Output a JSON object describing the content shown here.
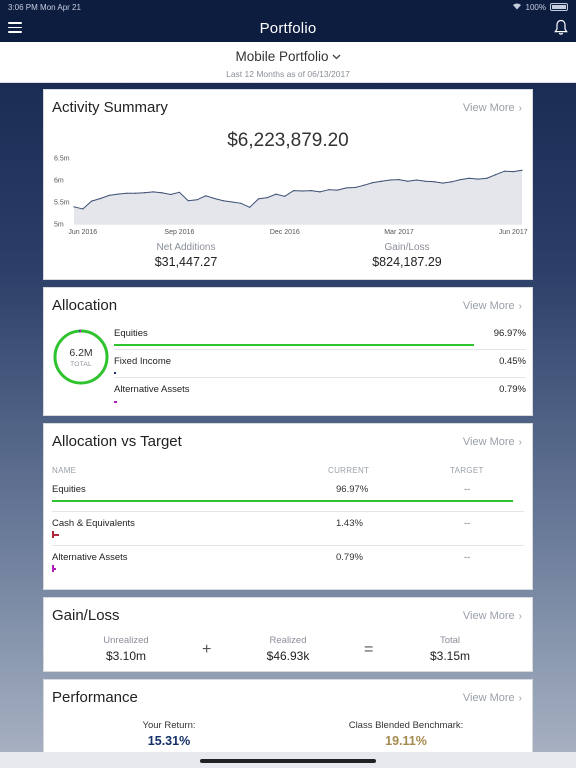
{
  "status_bar": {
    "time": "3:06 PM",
    "date": "Mon Apr 21",
    "battery": "100%"
  },
  "nav": {
    "title": "Portfolio"
  },
  "portfolio": {
    "name": "Mobile Portfolio",
    "subtitle": "Last 12 Months as of 06/13/2017"
  },
  "common": {
    "view_more": "View More"
  },
  "activity": {
    "title": "Activity Summary",
    "total_value": "$6,223,879.20",
    "net_additions_label": "Net Additions",
    "net_additions_value": "$31,447.27",
    "gain_loss_label": "Gain/Loss",
    "gain_loss_value": "$824,187.29"
  },
  "chart_data": {
    "type": "area",
    "title": "",
    "xlabel": "",
    "ylabel": "",
    "ylim": [
      5,
      6.5
    ],
    "y_ticks": [
      {
        "value": 6.5,
        "label": "6.5m"
      },
      {
        "value": 6,
        "label": "6m"
      },
      {
        "value": 5.5,
        "label": "5.5m"
      },
      {
        "value": 5,
        "label": "5m"
      }
    ],
    "x_ticks": [
      {
        "index": 1,
        "label": "Jun 2016"
      },
      {
        "index": 12,
        "label": "Sep 2016"
      },
      {
        "index": 24,
        "label": "Dec 2016"
      },
      {
        "index": 37,
        "label": "Mar 2017"
      },
      {
        "index": 50,
        "label": "Jun 2017"
      }
    ],
    "series": [
      {
        "values": [
          5.39,
          5.34,
          5.52,
          5.58,
          5.65,
          5.68,
          5.7,
          5.7,
          5.71,
          5.73,
          5.71,
          5.67,
          5.72,
          5.53,
          5.55,
          5.64,
          5.58,
          5.53,
          5.5,
          5.47,
          5.38,
          5.57,
          5.6,
          5.68,
          5.63,
          5.76,
          5.75,
          5.76,
          5.73,
          5.78,
          5.77,
          5.82,
          5.83,
          5.88,
          5.94,
          5.97,
          6.0,
          6.01,
          5.97,
          6.0,
          5.97,
          5.96,
          5.93,
          5.96,
          6.01,
          6.04,
          6.02,
          6.04,
          6.12,
          6.2,
          6.19,
          6.22
        ]
      }
    ],
    "grid": false,
    "legend": "none"
  },
  "allocation": {
    "title": "Allocation",
    "total_value": "6.2M",
    "total_label": "TOTAL",
    "items": [
      {
        "name": "Equities",
        "pct": "96.97%",
        "fraction": 0.9697,
        "color": "#2fc42f"
      },
      {
        "name": "Fixed Income",
        "pct": "0.45%",
        "fraction": 0.0045,
        "color": "#1a2f7a"
      },
      {
        "name": "Alternative Assets",
        "pct": "0.79%",
        "fraction": 0.0079,
        "color": "#b01fb5"
      }
    ]
  },
  "allocation_target": {
    "title": "Allocation vs Target",
    "col_name": "NAME",
    "col_current": "CURRENT",
    "col_target": "TARGET",
    "rows": [
      {
        "name": "Equities",
        "current": "96.97%",
        "target": "--",
        "fraction": 0.9697,
        "color": "#2fc42f"
      },
      {
        "name": "Cash & Equivalents",
        "current": "1.43%",
        "target": "--",
        "fraction": 0.0143,
        "color": "#b0283a"
      },
      {
        "name": "Alternative Assets",
        "current": "0.79%",
        "target": "--",
        "fraction": 0.0079,
        "color": "#b01fb5"
      }
    ]
  },
  "gain_loss": {
    "title": "Gain/Loss",
    "unrealized_label": "Unrealized",
    "unrealized_value": "$3.10m",
    "realized_label": "Realized",
    "realized_value": "$46.93k",
    "total_label": "Total",
    "total_value": "$3.15m",
    "plus": "+",
    "equals": "="
  },
  "performance": {
    "title": "Performance",
    "your_return_label": "Your Return:",
    "your_return_value": "15.31%",
    "benchmark_label": "Class Blended Benchmark:",
    "benchmark_value": "19.11%",
    "your_return_color": "#14306a",
    "benchmark_color": "#a48a4e"
  }
}
